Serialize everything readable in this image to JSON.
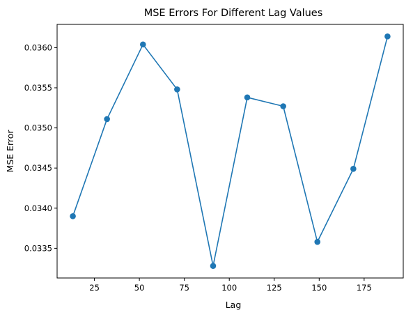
{
  "chart_data": {
    "type": "line",
    "title": "MSE Errors For Different Lag Values",
    "xlabel": "Lag",
    "ylabel": "MSE Error",
    "x": [
      13,
      32,
      52,
      71,
      91,
      110,
      130,
      149,
      169,
      188
    ],
    "series": [
      {
        "values": [
          0.0339,
          0.03511,
          0.03604,
          0.03548,
          0.03328,
          0.03538,
          0.03527,
          0.03358,
          0.03449,
          0.03614
        ]
      }
    ],
    "xlim": [
      4.25,
      196.75
    ],
    "ylim": [
      0.03313,
      0.03629
    ],
    "xticks": [
      25,
      50,
      75,
      100,
      125,
      150,
      175
    ],
    "xtick_labels": [
      "25",
      "50",
      "75",
      "100",
      "125",
      "150",
      "175"
    ],
    "yticks": [
      0.0335,
      0.034,
      0.0345,
      0.035,
      0.0355,
      0.036
    ],
    "ytick_labels": [
      "0.0335",
      "0.0340",
      "0.0345",
      "0.0350",
      "0.0355",
      "0.0360"
    ],
    "grid": false,
    "line_color": "#1f77b4",
    "marker": "circle"
  }
}
